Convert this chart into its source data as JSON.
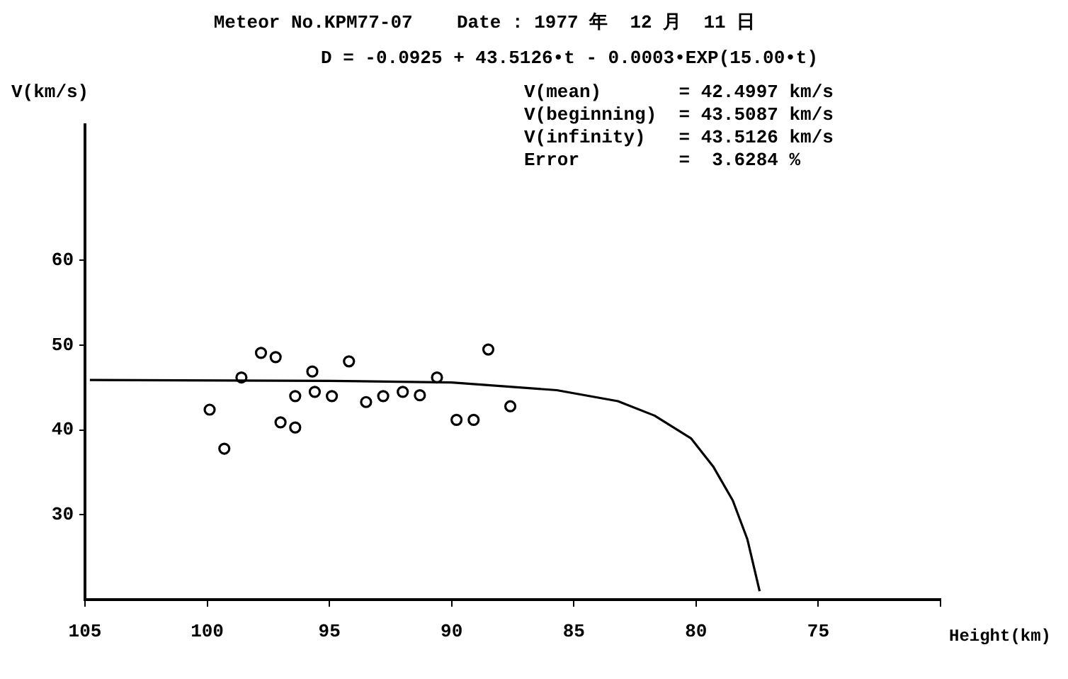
{
  "chart_data": {
    "type": "scatter",
    "title": "Meteor No.KPM77-07    Date : 1977 年  12 月  11 日",
    "subtitle": "D = -0.0925 + 43.5126•t - 0.0003•EXP(15.00•t)",
    "xlabel": "Height(km)",
    "ylabel": "V(km/s)",
    "annotations": [
      "V(mean)       = 42.4997 km/s",
      "V(beginning)  = 43.5087 km/s",
      "V(infinity)   = 43.5126 km/s",
      "Error         =  3.6284 %"
    ],
    "xlim": [
      105,
      70
    ],
    "xticks": [
      105,
      100,
      95,
      90,
      85,
      80,
      75,
      {
        "value": 70,
        "label": null
      }
    ],
    "ylim": [
      20,
      76
    ],
    "yticks": [
      30,
      40,
      50,
      60
    ],
    "grid": false,
    "legend": false,
    "series": [
      {
        "color": "#000000",
        "marker": "circle",
        "x": [
          99.9,
          99.3,
          98.6,
          97.8,
          97.2,
          97.0,
          96.4,
          96.4,
          95.7,
          95.6,
          94.9,
          94.2,
          93.5,
          92.8,
          92.0,
          91.3,
          90.6,
          89.8,
          89.1,
          88.5,
          87.6
        ],
        "values": [
          42.4,
          37.8,
          46.2,
          49.1,
          48.6,
          40.9,
          40.3,
          44.0,
          46.9,
          44.5,
          44.0,
          48.1,
          43.3,
          44.0,
          44.5,
          44.1,
          46.2,
          41.2,
          41.2,
          49.5,
          42.8
        ]
      },
      {
        "type": "line",
        "color": "#000000",
        "marker": "none",
        "line_style": "solid",
        "x": [
          104.8,
          95,
          90,
          85.7,
          83.2,
          81.7,
          80.2,
          79.3,
          78.5,
          77.9,
          77.4
        ],
        "values": [
          45.9,
          45.8,
          45.6,
          44.7,
          43.4,
          41.7,
          39.0,
          35.7,
          31.7,
          27.1,
          21.0
        ]
      }
    ]
  }
}
